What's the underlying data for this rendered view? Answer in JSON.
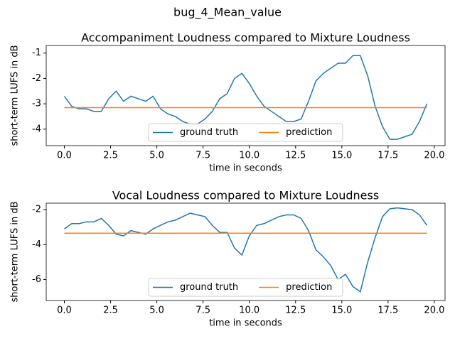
{
  "title": "bug_4_Mean_value",
  "chart_data": [
    {
      "type": "line",
      "title": "Accompaniment Loudness compared to Mixture Loudness",
      "x_label": "time in seconds",
      "y_label": "short-term LUFS in dB",
      "x": [
        0,
        0.4,
        0.8,
        1.2,
        1.6,
        2.0,
        2.4,
        2.8,
        3.2,
        3.6,
        4.0,
        4.4,
        4.8,
        5.2,
        5.6,
        6.0,
        6.4,
        6.8,
        7.2,
        7.6,
        8.0,
        8.4,
        8.8,
        9.2,
        9.6,
        10.0,
        10.4,
        10.8,
        11.2,
        11.6,
        12.0,
        12.4,
        12.8,
        13.2,
        13.6,
        14.0,
        14.4,
        14.8,
        15.2,
        15.6,
        16.0,
        16.4,
        16.8,
        17.2,
        17.6,
        18.0,
        18.4,
        18.8,
        19.2,
        19.6
      ],
      "series": [
        {
          "name": "ground truth",
          "color": "#1f77b4",
          "values": [
            -2.7,
            -3.1,
            -3.2,
            -3.2,
            -3.3,
            -3.3,
            -2.8,
            -2.5,
            -2.9,
            -2.7,
            -2.8,
            -2.9,
            -2.7,
            -3.2,
            -3.4,
            -3.5,
            -3.7,
            -3.8,
            -3.8,
            -3.6,
            -3.3,
            -2.8,
            -2.6,
            -2.0,
            -1.8,
            -2.2,
            -2.7,
            -3.1,
            -3.3,
            -3.5,
            -3.7,
            -3.7,
            -3.6,
            -2.9,
            -2.1,
            -1.8,
            -1.6,
            -1.4,
            -1.4,
            -1.1,
            -1.1,
            -1.9,
            -3.1,
            -3.9,
            -4.4,
            -4.4,
            -4.3,
            -4.2,
            -3.7,
            -3.0
          ]
        },
        {
          "name": "prediction",
          "color": "#ff7f0e",
          "values": [
            -3.15,
            -3.15,
            -3.15,
            -3.15,
            -3.15,
            -3.15,
            -3.15,
            -3.15,
            -3.15,
            -3.15,
            -3.15,
            -3.15,
            -3.15,
            -3.15,
            -3.15,
            -3.15,
            -3.15,
            -3.15,
            -3.15,
            -3.15,
            -3.15,
            -3.15,
            -3.15,
            -3.15,
            -3.15,
            -3.15,
            -3.15,
            -3.15,
            -3.15,
            -3.15,
            -3.15,
            -3.15,
            -3.15,
            -3.15,
            -3.15,
            -3.15,
            -3.15,
            -3.15,
            -3.15,
            -3.15,
            -3.15,
            -3.15,
            -3.15,
            -3.15,
            -3.15,
            -3.15,
            -3.15,
            -3.15,
            -3.15,
            -3.15
          ]
        }
      ],
      "xlim": [
        -0.98,
        20.58
      ],
      "xticks": [
        {
          "value": 0,
          "label": "0.0"
        },
        2.5,
        {
          "value": 5,
          "label": "5.0"
        },
        7.5,
        {
          "value": 10,
          "label": "10.0"
        },
        12.5,
        {
          "value": 15,
          "label": "15.0"
        },
        17.5,
        {
          "value": 20,
          "label": "20.0"
        }
      ],
      "ylim": [
        -4.65,
        -0.7
      ],
      "yticks": [
        -4,
        -3,
        -2,
        -1
      ],
      "legend": "lower center"
    },
    {
      "type": "line",
      "title": "Vocal Loudness compared to Mixture Loudness",
      "x_label": "time in seconds",
      "y_label": "short-term LUFS in dB",
      "x": [
        0,
        0.4,
        0.8,
        1.2,
        1.6,
        2.0,
        2.4,
        2.8,
        3.2,
        3.6,
        4.0,
        4.4,
        4.8,
        5.2,
        5.6,
        6.0,
        6.4,
        6.8,
        7.2,
        7.6,
        8.0,
        8.4,
        8.8,
        9.2,
        9.6,
        10.0,
        10.4,
        10.8,
        11.2,
        11.6,
        12.0,
        12.4,
        12.8,
        13.2,
        13.6,
        14.0,
        14.4,
        14.8,
        15.2,
        15.6,
        16.0,
        16.4,
        16.8,
        17.2,
        17.6,
        18.0,
        18.4,
        18.8,
        19.2,
        19.6
      ],
      "series": [
        {
          "name": "ground truth",
          "color": "#1f77b4",
          "values": [
            -3.1,
            -2.8,
            -2.8,
            -2.7,
            -2.7,
            -2.5,
            -2.9,
            -3.4,
            -3.5,
            -3.2,
            -3.3,
            -3.4,
            -3.1,
            -2.9,
            -2.7,
            -2.6,
            -2.4,
            -2.2,
            -2.3,
            -2.4,
            -2.9,
            -3.3,
            -3.3,
            -4.2,
            -4.6,
            -3.5,
            -2.9,
            -2.8,
            -2.6,
            -2.4,
            -2.3,
            -2.3,
            -2.5,
            -3.2,
            -4.3,
            -4.7,
            -5.2,
            -6.0,
            -5.7,
            -6.4,
            -6.7,
            -5.0,
            -3.6,
            -2.4,
            -1.95,
            -1.9,
            -1.95,
            -2.0,
            -2.3,
            -2.9
          ]
        },
        {
          "name": "prediction",
          "color": "#ff7f0e",
          "values": [
            -3.35,
            -3.35,
            -3.35,
            -3.35,
            -3.35,
            -3.35,
            -3.35,
            -3.35,
            -3.35,
            -3.35,
            -3.35,
            -3.35,
            -3.35,
            -3.35,
            -3.35,
            -3.35,
            -3.35,
            -3.35,
            -3.35,
            -3.35,
            -3.35,
            -3.35,
            -3.35,
            -3.35,
            -3.35,
            -3.35,
            -3.35,
            -3.35,
            -3.35,
            -3.35,
            -3.35,
            -3.35,
            -3.35,
            -3.35,
            -3.35,
            -3.35,
            -3.35,
            -3.35,
            -3.35,
            -3.35,
            -3.35,
            -3.35,
            -3.35,
            -3.35,
            -3.35,
            -3.35,
            -3.35,
            -3.35,
            -3.35,
            -3.35
          ]
        }
      ],
      "xlim": [
        -0.98,
        20.58
      ],
      "xticks": [
        {
          "value": 0,
          "label": "0.0"
        },
        2.5,
        {
          "value": 5,
          "label": "5.0"
        },
        7.5,
        {
          "value": 10,
          "label": "10.0"
        },
        12.5,
        {
          "value": 15,
          "label": "15.0"
        },
        17.5,
        {
          "value": 20,
          "label": "20.0"
        }
      ],
      "ylim": [
        -7.2,
        -1.63
      ],
      "yticks": [
        -6,
        -4,
        -2
      ],
      "legend": "lower center"
    }
  ]
}
